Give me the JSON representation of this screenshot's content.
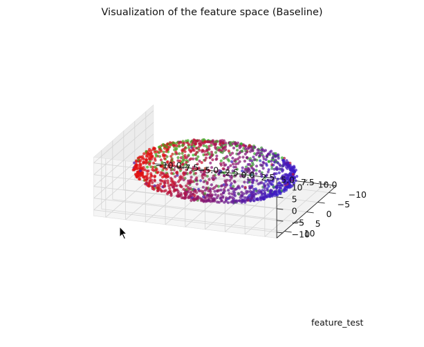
{
  "chart_data": {
    "type": "scatter",
    "projection": "3d",
    "title": "Visualization of the feature space (Baseline)",
    "xlabel": "",
    "ylabel": "feature_test",
    "zlabel": "",
    "xlim": [
      -11.5,
      11.5
    ],
    "ylim": [
      -13.5,
      13.5
    ],
    "zlim": [
      -12.5,
      12.5
    ],
    "xticks": [
      "−10.0",
      "−7.5",
      "−5.0",
      "−2.5",
      "0.0",
      "2.5",
      "5.0",
      "7.5",
      "10.0"
    ],
    "xtick_values": [
      -10,
      -7.5,
      -5,
      -2.5,
      0,
      2.5,
      5,
      7.5,
      10
    ],
    "yticks": [
      "−10",
      "−5",
      "0",
      "5",
      "10"
    ],
    "ytick_values": [
      -10,
      -5,
      0,
      5,
      10
    ],
    "zticks": [
      "−10",
      "−5",
      "0",
      "5",
      "10"
    ],
    "ztick_values": [
      -10,
      -5,
      0,
      5,
      10
    ],
    "grid": true,
    "marker_colors": {
      "red": "#e01010",
      "blue": "#2020d8",
      "green": "#30c020",
      "purple": "#7010a0"
    },
    "point_cloud": {
      "shape": "sphere",
      "radius": 10,
      "count": 1400,
      "color_gradient": "red at x<0, blue/purple at x>0 and low z, green at high z"
    }
  }
}
